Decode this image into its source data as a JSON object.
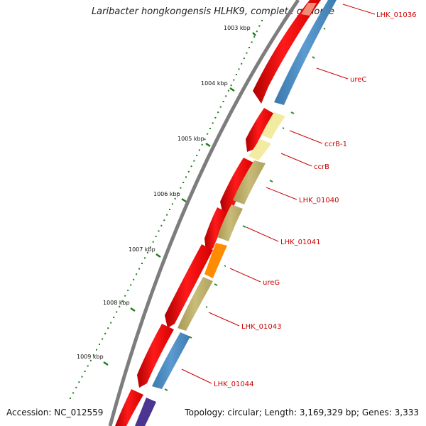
{
  "title": "Laribacter hongkongensis HLHK9, complete genome",
  "footer": {
    "accession": "Accession: NC_012559",
    "summary": "Topology: circular; Length: 3,169,329 bp; Genes: 3,333"
  },
  "ruler_ticks": [
    "1003 kbp",
    "1004 kbp",
    "1005 kbp",
    "1006 kbp",
    "1007 kbp",
    "1008 kbp",
    "1009 kbp"
  ],
  "gene_labels": [
    "LHK_01036",
    "ureC",
    "ccrB-1",
    "ccrB",
    "LHK_01040",
    "LHK_01041",
    "ureG",
    "LHK_01043",
    "LHK_01044"
  ],
  "colors": {
    "backbone": "#808080",
    "forward_cds": "#ff0000",
    "reverse_cds_blue": "#4f8fc5",
    "reverse_cds_yellow": "#f2e99a",
    "reverse_cds_olive": "#c2b46e",
    "reverse_cds_orange": "#ff8c00",
    "reverse_cds_purple": "#5a3d99",
    "tick_green": "#1e7a1e",
    "label_red": "#cc0000"
  }
}
